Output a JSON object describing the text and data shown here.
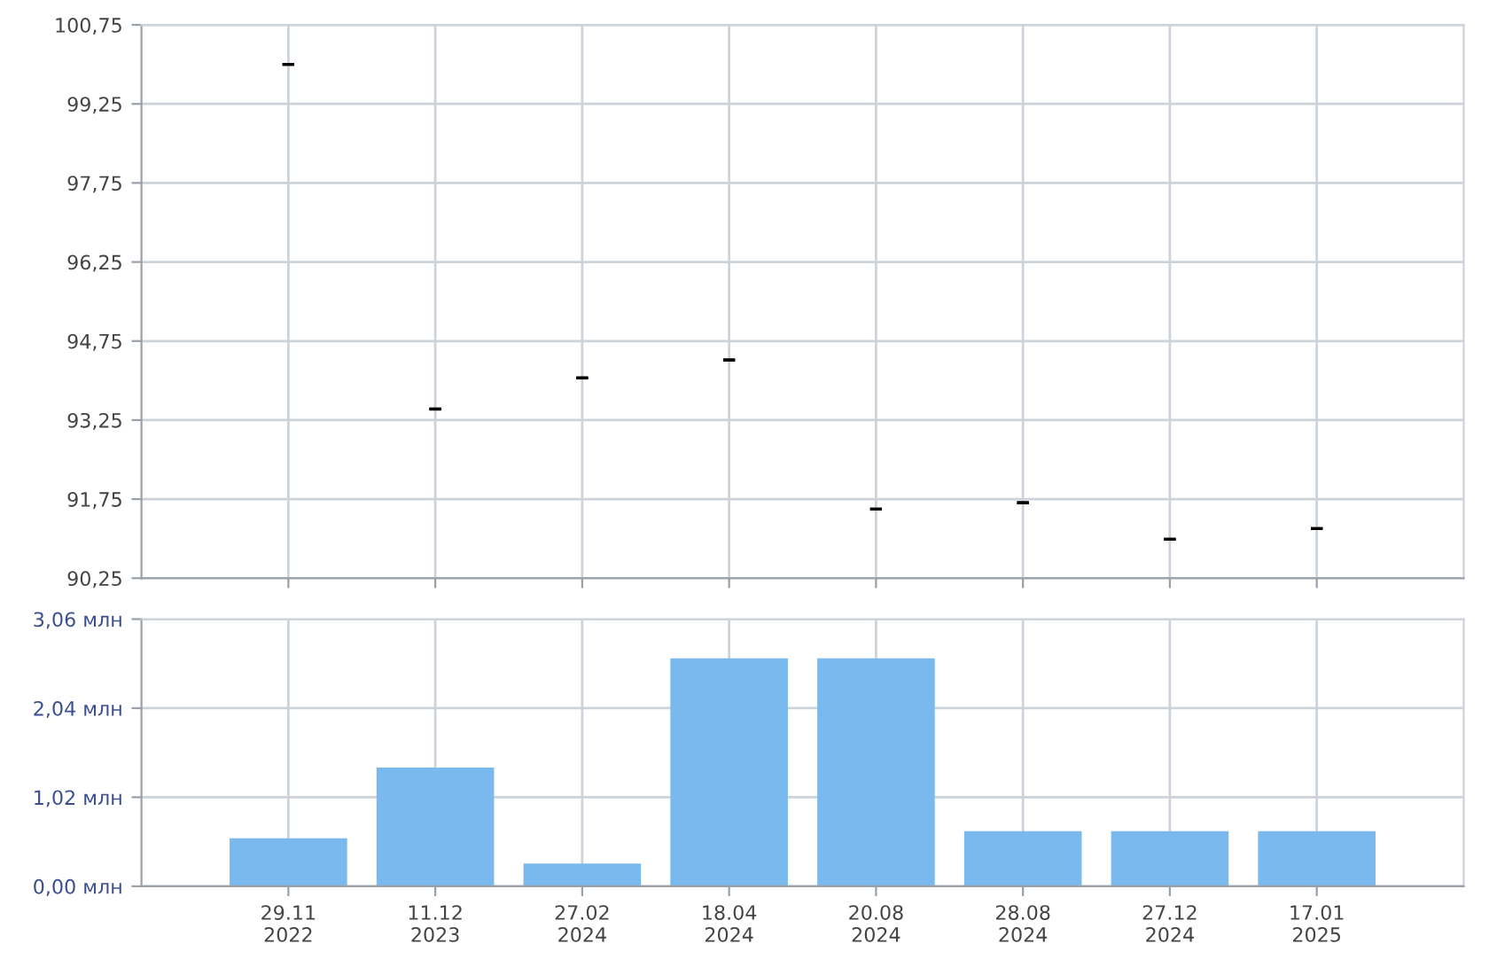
{
  "chart_data": [
    {
      "type": "candlestick",
      "categories": [
        null,
        null,
        null,
        null,
        null,
        null,
        null,
        null
      ],
      "ohlc": [
        [
          100.0,
          100.0,
          100.0,
          100.0
        ],
        [
          93.46,
          93.46,
          93.46,
          93.46
        ],
        [
          94.05,
          94.05,
          94.05,
          94.05
        ],
        [
          94.39,
          94.39,
          94.39,
          94.39
        ],
        [
          91.56,
          91.56,
          91.56,
          91.56
        ],
        [
          91.68,
          91.68,
          91.68,
          91.68
        ],
        [
          90.99,
          90.99,
          90.99,
          90.99
        ],
        [
          91.19,
          91.19,
          91.19,
          91.19
        ]
      ],
      "color": "#000000",
      "ylim": [
        90.25,
        100.75
      ],
      "yticks": [
        {
          "value": 90.25,
          "label": "90,25"
        },
        {
          "value": 91.75,
          "label": "91,75"
        },
        {
          "value": 93.25,
          "label": "93,25"
        },
        {
          "value": 94.75,
          "label": "94,75"
        },
        {
          "value": 96.25,
          "label": "96,25"
        },
        {
          "value": 97.75,
          "label": "97,75"
        },
        {
          "value": 99.25,
          "label": "99,25"
        },
        {
          "value": 100.75,
          "label": "100,75"
        }
      ],
      "grid": true
    },
    {
      "type": "bar",
      "categories": [
        "29.11\n2022",
        "11.12\n2023",
        "27.02\n2024",
        "18.04\n2024",
        "20.08\n2024",
        "28.08\n2024",
        "27.12\n2024",
        "17.01\n2025"
      ],
      "values": [
        0.55,
        1.36,
        0.26,
        2.61,
        2.61,
        0.63,
        0.63,
        0.63
      ],
      "color": "#7ab9ee",
      "ylim": [
        0,
        3.06
      ],
      "yticks": [
        {
          "value": 0,
          "label": "0,00 млн"
        },
        {
          "value": 1.02,
          "label": "1,02 млн"
        },
        {
          "value": 2.04,
          "label": "2,04 млн"
        },
        {
          "value": 3.06,
          "label": "3,06 млн"
        }
      ],
      "grid": true
    }
  ]
}
